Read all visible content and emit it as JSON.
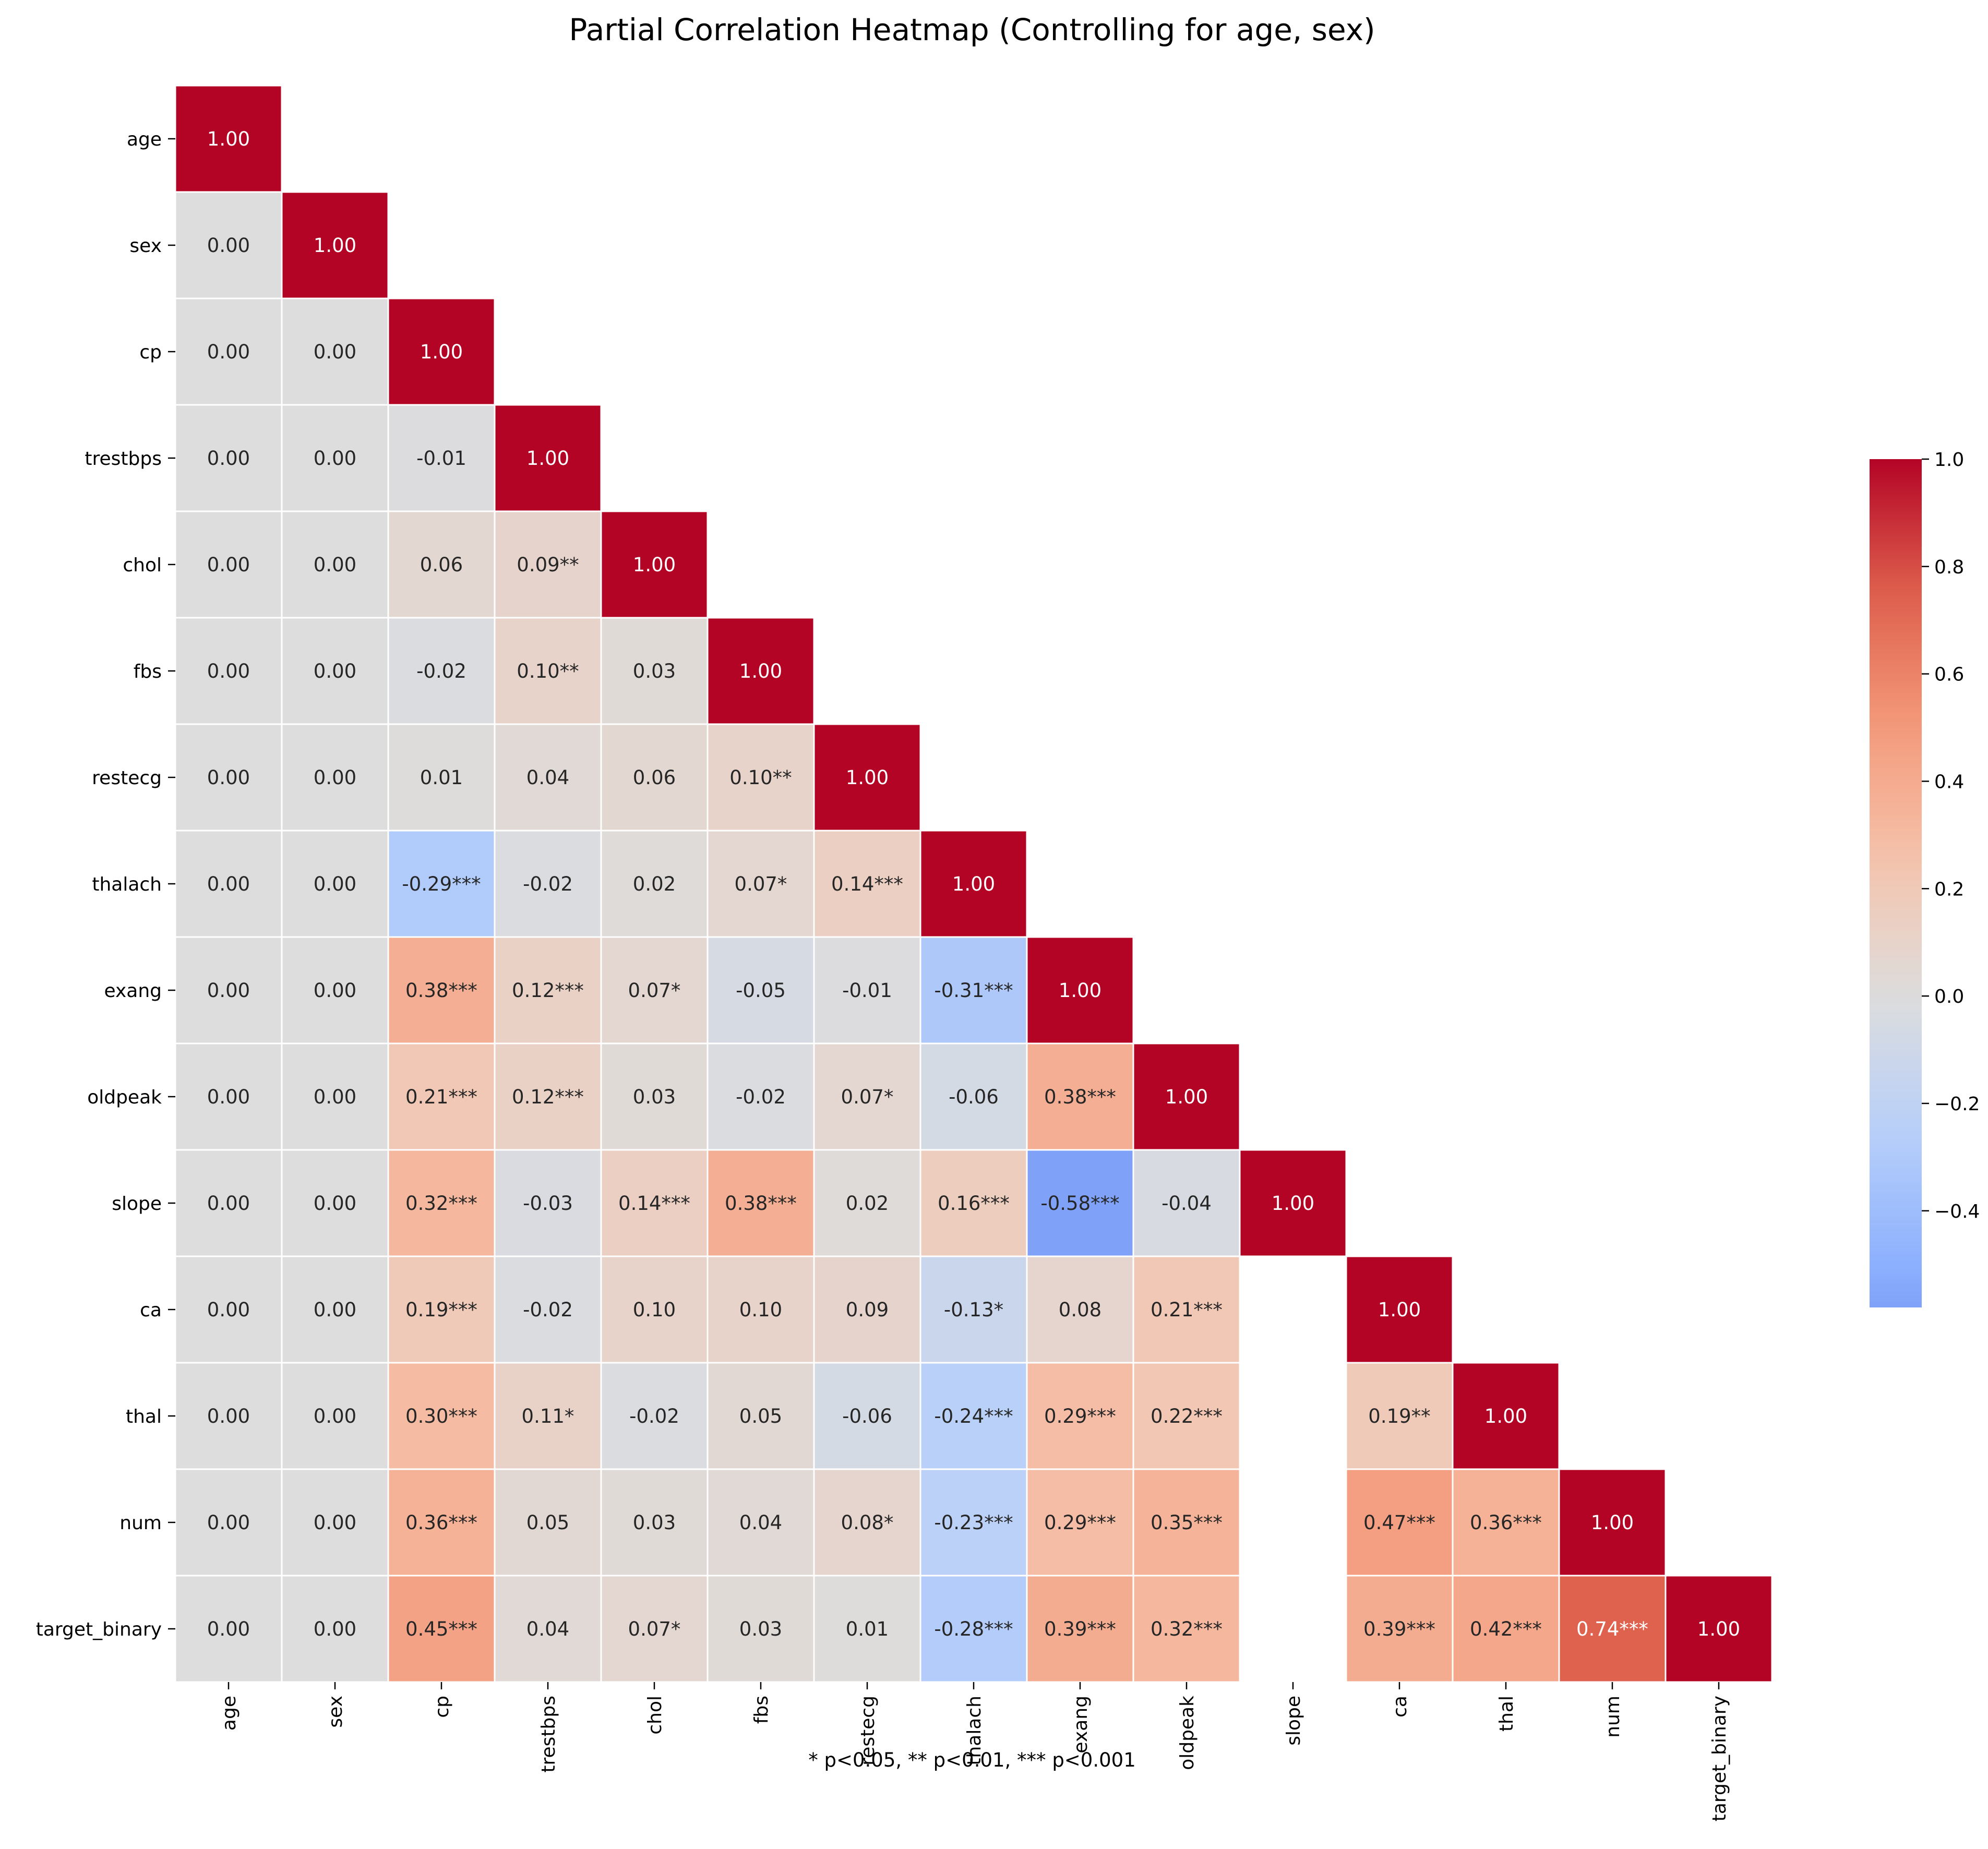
{
  "chart_data": {
    "type": "heatmap",
    "title": "Partial Correlation Heatmap (Controlling for age, sex)",
    "variables": [
      "age",
      "sex",
      "cp",
      "trestbps",
      "chol",
      "fbs",
      "restecg",
      "thalach",
      "exang",
      "oldpeak",
      "slope",
      "ca",
      "thal",
      "num",
      "target_binary"
    ],
    "mask": "upper triangle hidden; values shown for row index >= column index; slope column blank below its diagonal",
    "matrix": [
      [
        1.0
      ],
      [
        0.0,
        1.0
      ],
      [
        0.0,
        0.0,
        1.0
      ],
      [
        0.0,
        0.0,
        -0.01,
        1.0
      ],
      [
        0.0,
        0.0,
        0.06,
        0.09,
        1.0
      ],
      [
        0.0,
        0.0,
        -0.02,
        0.1,
        0.03,
        1.0
      ],
      [
        0.0,
        0.0,
        0.01,
        0.04,
        0.06,
        0.1,
        1.0
      ],
      [
        0.0,
        0.0,
        -0.29,
        -0.02,
        0.02,
        0.07,
        0.14,
        1.0
      ],
      [
        0.0,
        0.0,
        0.38,
        0.12,
        0.07,
        -0.05,
        -0.01,
        -0.31,
        1.0
      ],
      [
        0.0,
        0.0,
        0.21,
        0.12,
        0.03,
        -0.02,
        0.07,
        -0.06,
        0.38,
        1.0
      ],
      [
        0.0,
        0.0,
        0.32,
        -0.03,
        0.14,
        0.38,
        0.02,
        0.16,
        -0.58,
        -0.04,
        1.0
      ],
      [
        0.0,
        0.0,
        0.19,
        -0.02,
        0.1,
        0.1,
        0.09,
        -0.13,
        0.08,
        0.21,
        null,
        1.0
      ],
      [
        0.0,
        0.0,
        0.3,
        0.11,
        -0.02,
        0.05,
        -0.06,
        -0.24,
        0.29,
        0.22,
        null,
        0.19,
        1.0
      ],
      [
        0.0,
        0.0,
        0.36,
        0.05,
        0.03,
        0.04,
        0.08,
        -0.23,
        0.29,
        0.35,
        null,
        0.47,
        0.36,
        1.0
      ],
      [
        0.0,
        0.0,
        0.45,
        0.04,
        0.07,
        0.03,
        0.01,
        -0.28,
        0.39,
        0.32,
        null,
        0.39,
        0.42,
        0.74,
        1.0
      ]
    ],
    "labels": [
      [
        "1.00"
      ],
      [
        "0.00",
        "1.00"
      ],
      [
        "0.00",
        "0.00",
        "1.00"
      ],
      [
        "0.00",
        "0.00",
        "-0.01",
        "1.00"
      ],
      [
        "0.00",
        "0.00",
        "0.06",
        "0.09**",
        "1.00"
      ],
      [
        "0.00",
        "0.00",
        "-0.02",
        "0.10**",
        "0.03",
        "1.00"
      ],
      [
        "0.00",
        "0.00",
        "0.01",
        "0.04",
        "0.06",
        "0.10**",
        "1.00"
      ],
      [
        "0.00",
        "0.00",
        "-0.29***",
        "-0.02",
        "0.02",
        "0.07*",
        "0.14***",
        "1.00"
      ],
      [
        "0.00",
        "0.00",
        "0.38***",
        "0.12***",
        "0.07*",
        "-0.05",
        "-0.01",
        "-0.31***",
        "1.00"
      ],
      [
        "0.00",
        "0.00",
        "0.21***",
        "0.12***",
        "0.03",
        "-0.02",
        "0.07*",
        "-0.06",
        "0.38***",
        "1.00"
      ],
      [
        "0.00",
        "0.00",
        "0.32***",
        "-0.03",
        "0.14***",
        "0.38***",
        "0.02",
        "0.16***",
        "-0.58***",
        "-0.04",
        "1.00"
      ],
      [
        "0.00",
        "0.00",
        "0.19***",
        "-0.02",
        "0.10",
        "0.10",
        "0.09",
        "-0.13*",
        "0.08",
        "0.21***",
        "",
        "1.00"
      ],
      [
        "0.00",
        "0.00",
        "0.30***",
        "0.11*",
        "-0.02",
        "0.05",
        "-0.06",
        "-0.24***",
        "0.29***",
        "0.22***",
        "",
        "0.19**",
        "1.00"
      ],
      [
        "0.00",
        "0.00",
        "0.36***",
        "0.05",
        "0.03",
        "0.04",
        "0.08*",
        "-0.23***",
        "0.29***",
        "0.35***",
        "",
        "0.47***",
        "0.36***",
        "1.00"
      ],
      [
        "0.00",
        "0.00",
        "0.45***",
        "0.04",
        "0.07*",
        "0.03",
        "0.01",
        "-0.28***",
        "0.39***",
        "0.32***",
        "",
        "0.39***",
        "0.42***",
        "0.74***",
        "1.00"
      ]
    ],
    "colormap": "coolwarm",
    "center": 0,
    "colorbar": {
      "vmin": -0.58,
      "vmax": 1.0,
      "ticks": [
        1.0,
        0.8,
        0.6,
        0.4,
        0.2,
        0.0,
        -0.2,
        -0.4
      ],
      "tick_labels": [
        "1.0",
        "0.8",
        "0.6",
        "0.4",
        "0.2",
        "0.0",
        "−0.2",
        "−0.4"
      ]
    },
    "footnote": "* p<0.05, ** p<0.01, *** p<0.001",
    "grid": false
  }
}
